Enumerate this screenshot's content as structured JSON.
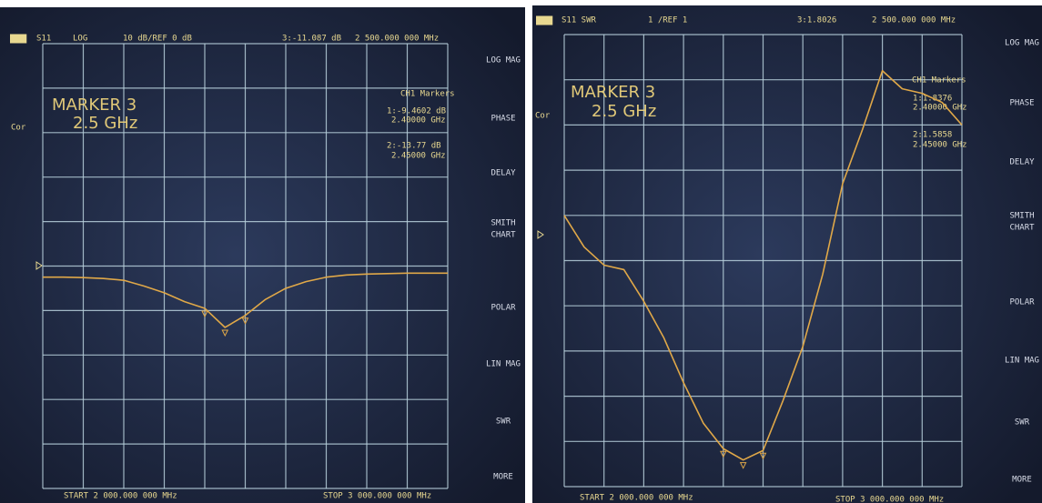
{
  "chart_data": [
    {
      "type": "line",
      "header": {
        "channel": "CH1",
        "parameter": "S11",
        "format": "LOG",
        "scale": "10 dB/REF 0 dB",
        "marker_readout": "3:-11.087 dB",
        "marker_frequency": "2 500.000 000 MHz"
      },
      "marker_title": [
        "MARKER 3",
        "2.5 GHz"
      ],
      "marker_list": [
        "CH1 Markers",
        "1:-9.4602 dB",
        "2.40000 GHz",
        "2:-13.77 dB",
        "2.45000 GHz"
      ],
      "correction": "Cor",
      "start": "START 2 000.000 000 MHz",
      "stop": "STOP 3 000.000 000 MHz",
      "softkeys": [
        [
          "LOG MAG"
        ],
        [
          "PHASE"
        ],
        [
          "DELAY"
        ],
        [
          "SMITH",
          "CHART"
        ],
        [
          "POLAR"
        ],
        [
          "LIN MAG"
        ],
        [
          "SWR"
        ],
        [
          "MORE"
        ]
      ],
      "x": [
        2.0,
        2.05,
        2.1,
        2.15,
        2.2,
        2.25,
        2.3,
        2.35,
        2.4,
        2.45,
        2.5,
        2.55,
        2.6,
        2.65,
        2.7,
        2.75,
        2.8,
        2.85,
        2.9,
        2.95,
        3.0
      ],
      "series": [
        {
          "color": "#e0a848",
          "values": [
            -2.5,
            -2.5,
            -2.6,
            -2.8,
            -3.2,
            -4.5,
            -6,
            -8,
            -9.5,
            -13.8,
            -11.1,
            -7.5,
            -5,
            -3.5,
            -2.5,
            -2,
            -1.8,
            -1.7,
            -1.6,
            -1.6,
            -1.6
          ]
        }
      ],
      "xlim": [
        2,
        3
      ],
      "ylim": [
        -50,
        50
      ]
    },
    {
      "type": "line",
      "header": {
        "channel": "CH1",
        "parameter": "S11 SWR",
        "format": "",
        "scale": "1 /REF 1",
        "marker_readout": "3:1.8026",
        "marker_frequency": "2 500.000 000 MHz"
      },
      "marker_title": [
        "MARKER 3",
        "2.5 GHz"
      ],
      "marker_list": [
        "CH1 Markers",
        "1:1.8376",
        "2.40000 GHz",
        "2:1.5858",
        "2.45000 GHz"
      ],
      "correction": "Cor",
      "start": "START 2 000.000 000 MHz",
      "stop": "STOP 3 000.000 000 MHz",
      "softkeys": [
        [
          "LOG MAG"
        ],
        [
          "PHASE"
        ],
        [
          "DELAY"
        ],
        [
          "SMITH",
          "CHART"
        ],
        [
          "POLAR"
        ],
        [
          "LIN MAG"
        ],
        [
          "SWR"
        ],
        [
          "MORE"
        ]
      ],
      "x": [
        2.0,
        2.05,
        2.1,
        2.15,
        2.2,
        2.25,
        2.3,
        2.35,
        2.4,
        2.45,
        2.5,
        2.55,
        2.6,
        2.65,
        2.7,
        2.75,
        2.8,
        2.85,
        2.9,
        2.95,
        3.0
      ],
      "series": [
        {
          "color": "#e0a848",
          "values": [
            7.0,
            6.3,
            5.9,
            5.8,
            5.1,
            4.3,
            3.3,
            2.4,
            1.84,
            1.59,
            1.8,
            2.9,
            4.1,
            5.7,
            7.7,
            8.9,
            10.2,
            9.8,
            9.7,
            9.5,
            9.0
          ]
        }
      ],
      "xlim": [
        2,
        3
      ],
      "ylim": [
        1,
        11
      ]
    }
  ]
}
